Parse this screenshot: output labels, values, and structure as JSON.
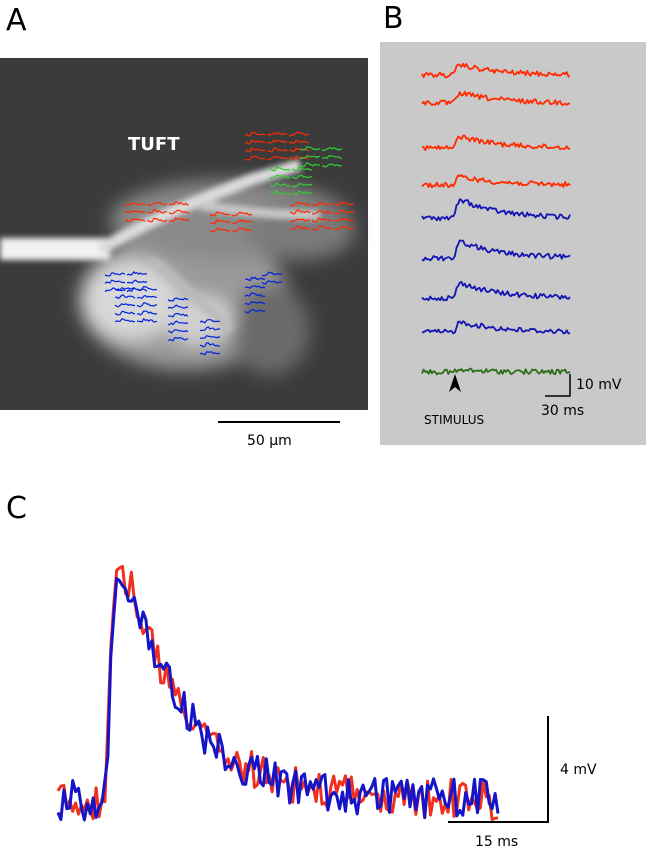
{
  "panel_a": {
    "label": "A",
    "region_label": "TUFT",
    "scale_bar_label": "50 µm"
  },
  "panel_b": {
    "label": "B",
    "stimulus_label": "STIMULUS",
    "scale_y_label": "10 mV",
    "scale_x_label": "30 ms"
  },
  "panel_c": {
    "label": "C",
    "scale_y_label": "4 mV",
    "scale_x_label": "15 ms"
  }
}
